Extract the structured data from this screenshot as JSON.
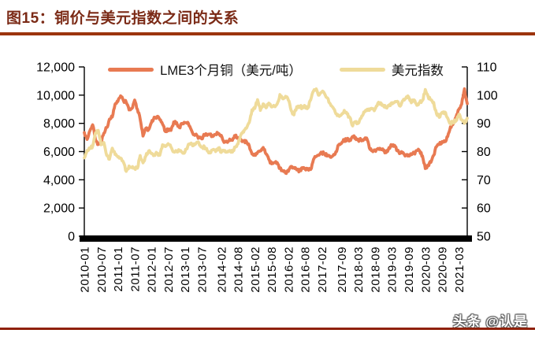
{
  "header": {
    "figure_title": "图15：铜价与美元指数之间的关系"
  },
  "footer": {
    "watermark": "头条 @认是"
  },
  "colors": {
    "title_text": "#7B2A16",
    "title_underline": "#9C340D",
    "footer_line": "#8F2008",
    "axis": "#000000",
    "copper_line": "#E87A52",
    "dxy_line": "#EFDB9A"
  },
  "chart_data": {
    "type": "line",
    "title": "图15：铜价与美元指数之间的关系",
    "grid": false,
    "legend_position": "top-center",
    "x_range": {
      "start": "2010-01",
      "end": "2021-06",
      "interval": "month"
    },
    "x_tick_labels": [
      "2010-01",
      "2010-07",
      "2011-01",
      "2011-07",
      "2012-01",
      "2012-07",
      "2013-01",
      "2013-07",
      "2014-02",
      "2014-08",
      "2015-02",
      "2015-08",
      "2016-02",
      "2016-08",
      "2017-02",
      "2017-09",
      "2018-03",
      "2018-09",
      "2019-03",
      "2019-09",
      "2020-03",
      "2020-09",
      "2021-03"
    ],
    "y_left": {
      "min": 0,
      "max": 12000,
      "tick_labels": [
        "0",
        "2,000",
        "4,000",
        "6,000",
        "8,000",
        "10,000",
        "12,000"
      ]
    },
    "y_right": {
      "min": 50,
      "max": 110,
      "tick_labels": [
        "50",
        "60",
        "70",
        "80",
        "90",
        "100",
        "110"
      ]
    },
    "series": [
      {
        "id": "copper",
        "name": "LME3个月铜（美元/吨）",
        "axis": "left",
        "color": "#E87A52",
        "values": [
          7350,
          6860,
          7480,
          7900,
          6840,
          6500,
          6720,
          7300,
          7700,
          8300,
          8450,
          9350,
          9550,
          9950,
          9600,
          9500,
          8950,
          9050,
          9650,
          9000,
          8300,
          7100,
          7650,
          7550,
          8040,
          8440,
          8470,
          8260,
          7950,
          7420,
          7580,
          7500,
          8100,
          8060,
          7700,
          7960,
          8050,
          8070,
          7660,
          7200,
          7240,
          6960,
          6900,
          7200,
          7150,
          7200,
          7070,
          7220,
          7290,
          7150,
          6650,
          6670,
          6890,
          6800,
          7100,
          6990,
          6870,
          6740,
          6710,
          6420,
          5830,
          5730,
          5940,
          6040,
          6290,
          5830,
          5460,
          5130,
          5220,
          5220,
          4800,
          4640,
          4470,
          4600,
          4950,
          4870,
          4700,
          4640,
          4860,
          4750,
          4720,
          4730,
          5450,
          5660,
          5750,
          5940,
          5830,
          5680,
          5600,
          5720,
          5990,
          6480,
          6580,
          6810,
          6830,
          6840,
          7070,
          7010,
          6800,
          6850,
          6850,
          6960,
          6250,
          6050,
          6050,
          6220,
          6200,
          6080,
          5930,
          6280,
          6440,
          6440,
          6050,
          5870,
          5940,
          5710,
          5760,
          5780,
          5870,
          6070,
          6050,
          5690,
          4800,
          5050,
          5240,
          5740,
          6350,
          6500,
          6710,
          6700,
          7060,
          7760,
          7960,
          8460,
          8990,
          9350,
          10450,
          9400
        ]
      },
      {
        "id": "dxy",
        "name": "美元指数",
        "axis": "right",
        "color": "#EFDB9A",
        "values": [
          77.8,
          80.4,
          81.1,
          81.9,
          86.6,
          87.5,
          82.4,
          83.2,
          78.7,
          77.3,
          81.2,
          79.0,
          78.1,
          77.7,
          76.2,
          73.0,
          74.9,
          74.3,
          74.2,
          74.1,
          78.6,
          76.0,
          78.3,
          80.2,
          79.3,
          78.7,
          79.5,
          78.7,
          82.4,
          81.8,
          82.8,
          81.6,
          79.9,
          80.0,
          80.2,
          79.8,
          79.8,
          81.9,
          82.9,
          82.1,
          83.0,
          83.1,
          81.5,
          81.7,
          80.2,
          79.5,
          80.7,
          80.0,
          81.3,
          79.7,
          80.2,
          79.8,
          80.4,
          79.8,
          81.5,
          82.7,
          85.9,
          86.9,
          88.3,
          90.3,
          94.8,
          95.3,
          98.4,
          94.6,
          96.9,
          95.5,
          97.2,
          95.8,
          96.2,
          96.9,
          100.2,
          98.7,
          99.6,
          98.2,
          94.6,
          93.0,
          95.9,
          96.1,
          95.5,
          96.0,
          95.5,
          98.3,
          101.5,
          102.2,
          100.0,
          101.1,
          100.4,
          99.0,
          96.9,
          95.6,
          93.4,
          92.7,
          93.1,
          94.6,
          93.3,
          92.1,
          89.1,
          90.6,
          90.0,
          91.8,
          94.0,
          94.5,
          94.6,
          95.1,
          95.0,
          97.1,
          97.3,
          96.2,
          95.6,
          96.2,
          97.3,
          97.5,
          97.8,
          96.1,
          98.1,
          98.9,
          99.4,
          97.3,
          98.3,
          96.4,
          97.4,
          98.1,
          102.0,
          99.5,
          98.3,
          97.4,
          93.4,
          92.1,
          93.9,
          94.0,
          91.9,
          89.9,
          90.6,
          90.9,
          93.2,
          91.3,
          90.0,
          91.8
        ]
      }
    ]
  }
}
